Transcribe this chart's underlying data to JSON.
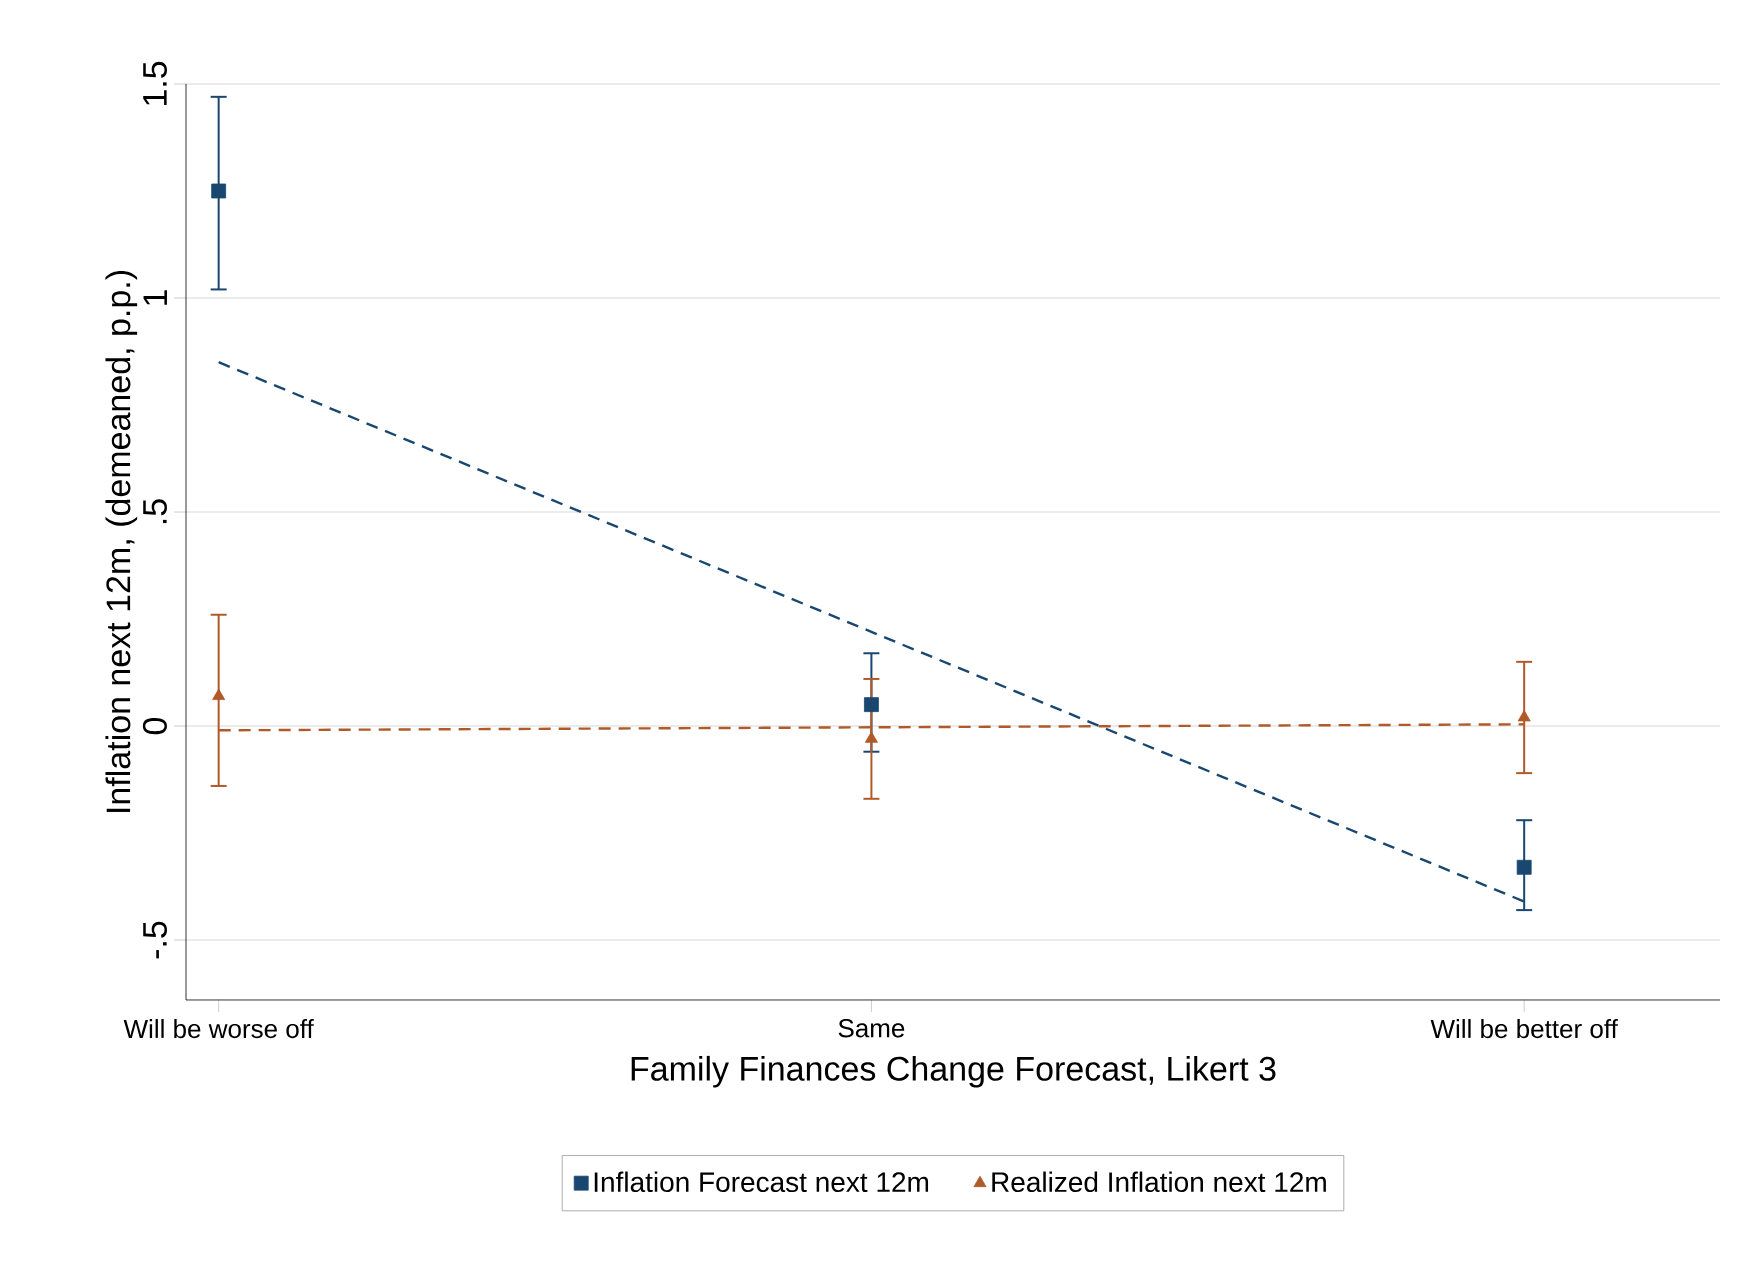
{
  "chart_data": {
    "type": "scatter",
    "xlabel": "Family Finances Change Forecast, Likert 3",
    "ylabel": "Inflation next 12m, (demeaned, p.p.)",
    "categories": [
      "Will be worse off",
      "Same",
      "Will be better off"
    ],
    "ylim": [
      -0.64,
      1.5
    ],
    "yticks": [
      {
        "value": -0.5,
        "label": "-.5"
      },
      0,
      {
        "value": 0.5,
        "label": ".5"
      },
      1,
      1.5
    ],
    "grid": "y",
    "legend": "bottom",
    "series": [
      {
        "name": "Inflation Forecast next 12m",
        "color": "#1a476f",
        "marker": "square",
        "values": [
          1.25,
          0.05,
          -0.33
        ],
        "errors": [
          [
            1.02,
            1.47
          ],
          [
            -0.06,
            0.17
          ],
          [
            -0.43,
            -0.22
          ]
        ]
      },
      {
        "name": "Realized Inflation next 12m",
        "color": "#b05a2a",
        "marker": "triangle",
        "values": [
          0.07,
          -0.03,
          0.02
        ],
        "errors": [
          [
            -0.14,
            0.26
          ],
          [
            -0.17,
            0.11
          ],
          [
            -0.11,
            0.15
          ]
        ]
      },
      {
        "type": "line",
        "color": "#1a476f",
        "line_style": "dashed",
        "marker": "none",
        "values": [
          0.85,
          0.22,
          -0.41
        ]
      },
      {
        "type": "line",
        "color": "#b05a2a",
        "line_style": "dashed",
        "marker": "none",
        "values": [
          -0.01,
          -0.003,
          0.004
        ]
      }
    ]
  }
}
